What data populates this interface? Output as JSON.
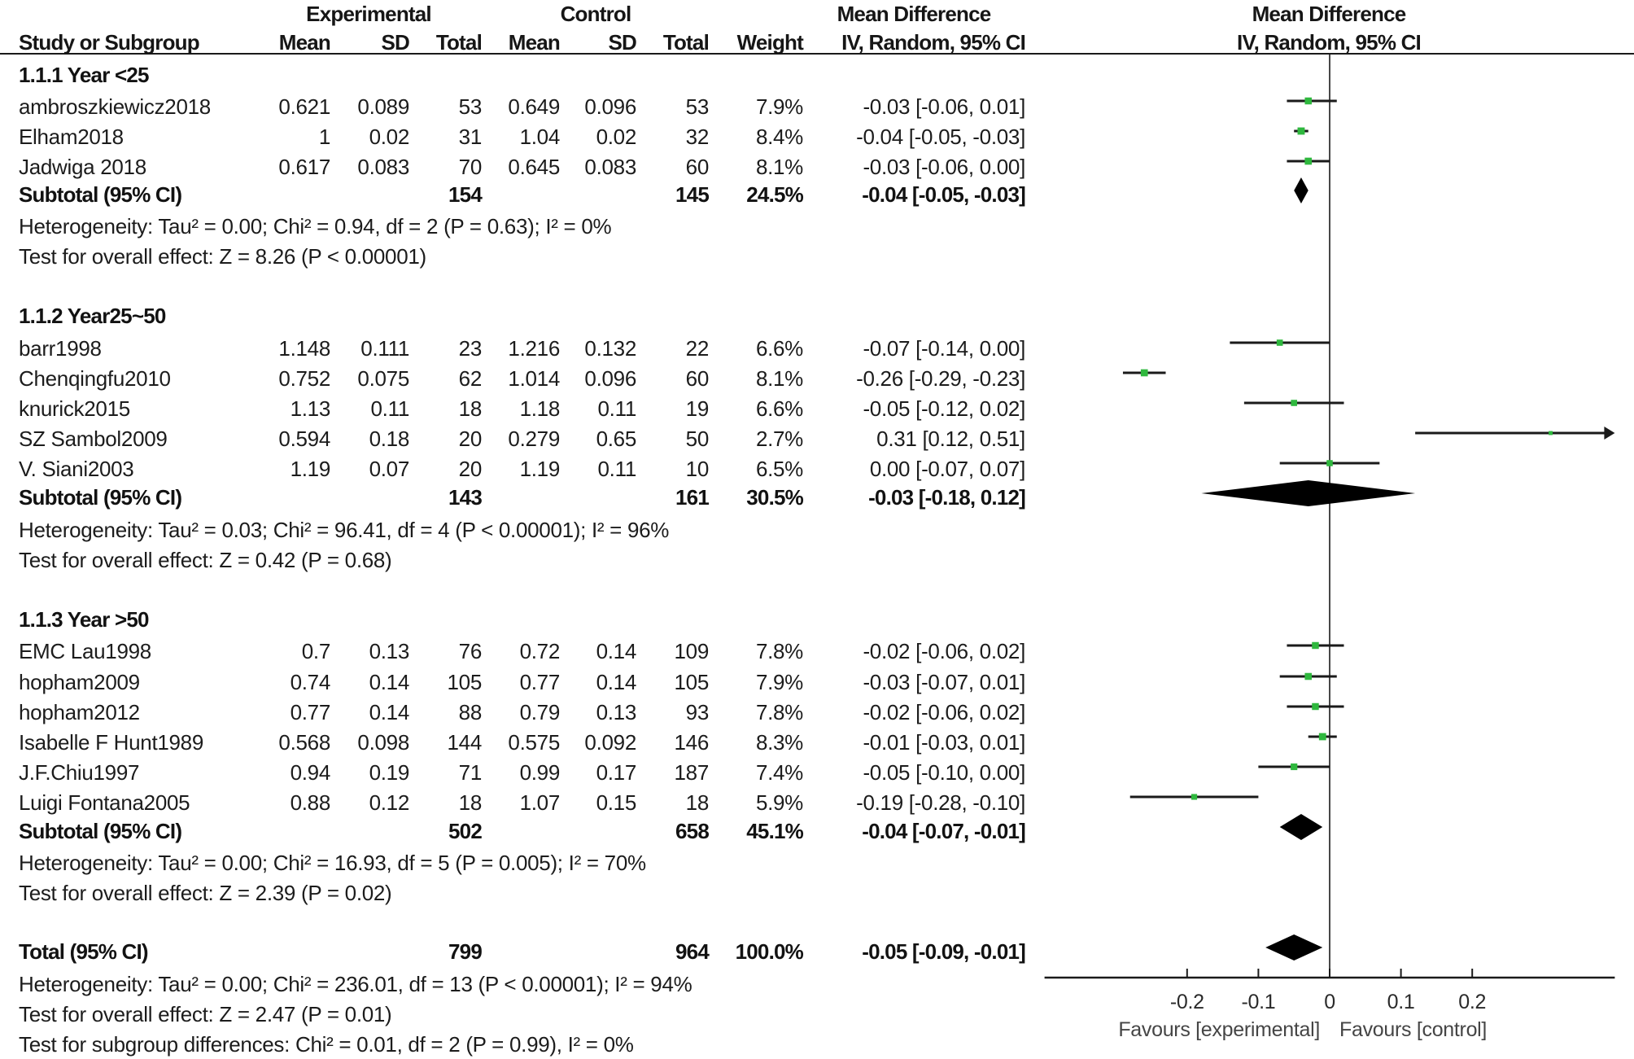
{
  "header": {
    "experimental": "Experimental",
    "control": "Control",
    "md_column_title": "Mean Difference",
    "md_column_method": "IV, Random, 95% CI",
    "plot_title": "Mean Difference",
    "plot_method": "IV, Random, 95% CI",
    "study": "Study or Subgroup",
    "e_mean": "Mean",
    "e_sd": "SD",
    "e_total": "Total",
    "c_mean": "Mean",
    "c_sd": "SD",
    "c_total": "Total",
    "weight": "Weight"
  },
  "colors": {
    "marker": "#2fb83e",
    "line": "#1a1a1a",
    "diamond": "#000000"
  },
  "chart_data": {
    "type": "scatter",
    "title": "Mean Difference",
    "subtitle": "IV, Random, 95% CI",
    "xlabel_left": "Favours [experimental]",
    "xlabel_right": "Favours [control]",
    "xlim": [
      -0.4,
      0.4
    ],
    "x_tick_values": [
      -0.2,
      -0.1,
      0,
      0.1,
      0.2
    ],
    "x_ticks": [
      "-0.2",
      "-0.1",
      "0",
      "0.1",
      "0.2"
    ],
    "reference_line": 0,
    "grid": false,
    "subgroups": [
      {
        "title": "1.1.1 Year <25",
        "studies": [
          {
            "name": "ambroszkiewicz2018",
            "e_mean": "0.621",
            "e_sd": "0.089",
            "e_total": "53",
            "c_mean": "0.649",
            "c_sd": "0.096",
            "c_total": "53",
            "weight": "7.9%",
            "ci_text": "-0.03 [-0.06, 0.01]",
            "md": -0.03,
            "lo": -0.06,
            "hi": 0.01
          },
          {
            "name": "Elham2018",
            "e_mean": "1",
            "e_sd": "0.02",
            "e_total": "31",
            "c_mean": "1.04",
            "c_sd": "0.02",
            "c_total": "32",
            "weight": "8.4%",
            "ci_text": "-0.04 [-0.05, -0.03]",
            "md": -0.04,
            "lo": -0.05,
            "hi": -0.03
          },
          {
            "name": "Jadwiga 2018",
            "e_mean": "0.617",
            "e_sd": "0.083",
            "e_total": "70",
            "c_mean": "0.645",
            "c_sd": "0.083",
            "c_total": "60",
            "weight": "8.1%",
            "ci_text": "-0.03 [-0.06, 0.00]",
            "md": -0.03,
            "lo": -0.06,
            "hi": 0.0
          }
        ],
        "subtotal": {
          "label": "Subtotal (95% CI)",
          "e_total": "154",
          "c_total": "145",
          "weight": "24.5%",
          "ci_text": "-0.04 [-0.05, -0.03]",
          "md": -0.04,
          "lo": -0.05,
          "hi": -0.03
        },
        "heterogeneity": "Heterogeneity: Tau² = 0.00; Chi² = 0.94, df = 2 (P = 0.63); I² = 0%",
        "overall_effect": "Test for overall effect: Z = 8.26 (P < 0.00001)"
      },
      {
        "title": "1.1.2 Year25~50",
        "studies": [
          {
            "name": "barr1998",
            "e_mean": "1.148",
            "e_sd": "0.111",
            "e_total": "23",
            "c_mean": "1.216",
            "c_sd": "0.132",
            "c_total": "22",
            "weight": "6.6%",
            "ci_text": "-0.07 [-0.14, 0.00]",
            "md": -0.07,
            "lo": -0.14,
            "hi": 0.0
          },
          {
            "name": "Chenqingfu2010",
            "e_mean": "0.752",
            "e_sd": "0.075",
            "e_total": "62",
            "c_mean": "1.014",
            "c_sd": "0.096",
            "c_total": "60",
            "weight": "8.1%",
            "ci_text": "-0.26 [-0.29, -0.23]",
            "md": -0.26,
            "lo": -0.29,
            "hi": -0.23
          },
          {
            "name": "knurick2015",
            "e_mean": "1.13",
            "e_sd": "0.11",
            "e_total": "18",
            "c_mean": "1.18",
            "c_sd": "0.11",
            "c_total": "19",
            "weight": "6.6%",
            "ci_text": "-0.05 [-0.12, 0.02]",
            "md": -0.05,
            "lo": -0.12,
            "hi": 0.02
          },
          {
            "name": "SZ Sambol2009",
            "e_mean": "0.594",
            "e_sd": "0.18",
            "e_total": "20",
            "c_mean": "0.279",
            "c_sd": "0.65",
            "c_total": "50",
            "weight": "2.7%",
            "ci_text": "0.31 [0.12, 0.51]",
            "md": 0.31,
            "lo": 0.12,
            "hi": 0.51
          },
          {
            "name": "V. Siani2003",
            "e_mean": "1.19",
            "e_sd": "0.07",
            "e_total": "20",
            "c_mean": "1.19",
            "c_sd": "0.11",
            "c_total": "10",
            "weight": "6.5%",
            "ci_text": "0.00 [-0.07, 0.07]",
            "md": 0.0,
            "lo": -0.07,
            "hi": 0.07
          }
        ],
        "subtotal": {
          "label": "Subtotal (95% CI)",
          "e_total": "143",
          "c_total": "161",
          "weight": "30.5%",
          "ci_text": "-0.03 [-0.18, 0.12]",
          "md": -0.03,
          "lo": -0.18,
          "hi": 0.12
        },
        "heterogeneity": "Heterogeneity: Tau² = 0.03; Chi² = 96.41, df = 4 (P < 0.00001); I² = 96%",
        "overall_effect": "Test for overall effect: Z = 0.42 (P = 0.68)"
      },
      {
        "title": "1.1.3 Year >50",
        "studies": [
          {
            "name": "EMC Lau1998",
            "e_mean": "0.7",
            "e_sd": "0.13",
            "e_total": "76",
            "c_mean": "0.72",
            "c_sd": "0.14",
            "c_total": "109",
            "weight": "7.8%",
            "ci_text": "-0.02 [-0.06, 0.02]",
            "md": -0.02,
            "lo": -0.06,
            "hi": 0.02
          },
          {
            "name": "hopham2009",
            "e_mean": "0.74",
            "e_sd": "0.14",
            "e_total": "105",
            "c_mean": "0.77",
            "c_sd": "0.14",
            "c_total": "105",
            "weight": "7.9%",
            "ci_text": "-0.03 [-0.07, 0.01]",
            "md": -0.03,
            "lo": -0.07,
            "hi": 0.01
          },
          {
            "name": "hopham2012",
            "e_mean": "0.77",
            "e_sd": "0.14",
            "e_total": "88",
            "c_mean": "0.79",
            "c_sd": "0.13",
            "c_total": "93",
            "weight": "7.8%",
            "ci_text": "-0.02 [-0.06, 0.02]",
            "md": -0.02,
            "lo": -0.06,
            "hi": 0.02
          },
          {
            "name": "Isabelle F Hunt1989",
            "e_mean": "0.568",
            "e_sd": "0.098",
            "e_total": "144",
            "c_mean": "0.575",
            "c_sd": "0.092",
            "c_total": "146",
            "weight": "8.3%",
            "ci_text": "-0.01 [-0.03, 0.01]",
            "md": -0.01,
            "lo": -0.03,
            "hi": 0.01
          },
          {
            "name": "J.F.Chiu1997",
            "e_mean": "0.94",
            "e_sd": "0.19",
            "e_total": "71",
            "c_mean": "0.99",
            "c_sd": "0.17",
            "c_total": "187",
            "weight": "7.4%",
            "ci_text": "-0.05 [-0.10, 0.00]",
            "md": -0.05,
            "lo": -0.1,
            "hi": 0.0
          },
          {
            "name": "Luigi Fontana2005",
            "e_mean": "0.88",
            "e_sd": "0.12",
            "e_total": "18",
            "c_mean": "1.07",
            "c_sd": "0.15",
            "c_total": "18",
            "weight": "5.9%",
            "ci_text": "-0.19 [-0.28, -0.10]",
            "md": -0.19,
            "lo": -0.28,
            "hi": -0.1
          }
        ],
        "subtotal": {
          "label": "Subtotal (95% CI)",
          "e_total": "502",
          "c_total": "658",
          "weight": "45.1%",
          "ci_text": "-0.04 [-0.07, -0.01]",
          "md": -0.04,
          "lo": -0.07,
          "hi": -0.01
        },
        "heterogeneity": "Heterogeneity: Tau² = 0.00; Chi² = 16.93, df = 5 (P = 0.005); I² = 70%",
        "overall_effect": "Test for overall effect: Z = 2.39 (P = 0.02)"
      }
    ],
    "total": {
      "label": "Total (95% CI)",
      "e_total": "799",
      "c_total": "964",
      "weight": "100.0%",
      "ci_text": "-0.05 [-0.09, -0.01]",
      "md": -0.05,
      "lo": -0.09,
      "hi": -0.01,
      "heterogeneity": "Heterogeneity: Tau² = 0.00; Chi² = 236.01, df = 13 (P < 0.00001); I² = 94%",
      "overall_effect": "Test for overall effect: Z = 2.47 (P = 0.01)",
      "subgroup_differences": "Test for subgroup differences: Chi² = 0.01, df = 2 (P = 0.99), I² = 0%"
    }
  }
}
